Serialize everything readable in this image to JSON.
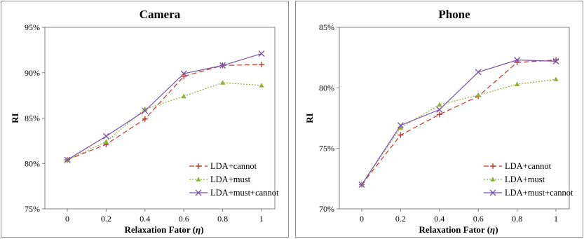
{
  "chart_data": [
    {
      "type": "line",
      "title": "Camera",
      "xlabel": "Relaxation Fator (",
      "xlabel_symbol": "η",
      "xlabel_close": ")",
      "ylabel": "RI",
      "x": [
        "0",
        "0.2",
        "0.4",
        "0.6",
        "0.8",
        "1"
      ],
      "ylim": [
        75,
        95
      ],
      "yticks": [
        "75%",
        "80%",
        "85%",
        "90%",
        "95%"
      ],
      "ytick_values": [
        75,
        80,
        85,
        90,
        95
      ],
      "legend_position": "bottom-right",
      "series": [
        {
          "name": "LDA+cannot",
          "values": [
            80.4,
            82.1,
            84.9,
            89.6,
            90.8,
            90.9
          ],
          "color": "#c0392b",
          "marker": "plus",
          "dash": "7,4"
        },
        {
          "name": "LDA+must",
          "values": [
            80.4,
            82.4,
            86.0,
            87.4,
            88.9,
            88.6
          ],
          "color": "#8db33b",
          "marker": "triangle",
          "dash": "2,2"
        },
        {
          "name": "LDA+must+cannot",
          "values": [
            80.4,
            83.0,
            85.8,
            89.9,
            90.8,
            92.1
          ],
          "color": "#7b52ae",
          "marker": "x",
          "dash": ""
        }
      ]
    },
    {
      "type": "line",
      "title": "Phone",
      "xlabel": "Relaxation Fator (",
      "xlabel_symbol": "η",
      "xlabel_close": ")",
      "ylabel": "RI",
      "x": [
        "0",
        "0.2",
        "0.4",
        "0.6",
        "0.8",
        "1"
      ],
      "ylim": [
        70,
        85
      ],
      "yticks": [
        "70%",
        "75%",
        "80%",
        "85%"
      ],
      "ytick_values": [
        70,
        75,
        80,
        85
      ],
      "legend_position": "bottom-right",
      "series": [
        {
          "name": "LDA+cannot",
          "values": [
            72.0,
            76.1,
            77.8,
            79.3,
            82.1,
            82.3
          ],
          "color": "#c0392b",
          "marker": "plus",
          "dash": "7,4"
        },
        {
          "name": "LDA+must",
          "values": [
            72.0,
            76.7,
            78.6,
            79.4,
            80.3,
            80.7
          ],
          "color": "#8db33b",
          "marker": "triangle",
          "dash": "2,2"
        },
        {
          "name": "LDA+must+cannot",
          "values": [
            72.0,
            76.9,
            78.2,
            81.3,
            82.3,
            82.2
          ],
          "color": "#7b52ae",
          "marker": "x",
          "dash": ""
        }
      ]
    }
  ]
}
